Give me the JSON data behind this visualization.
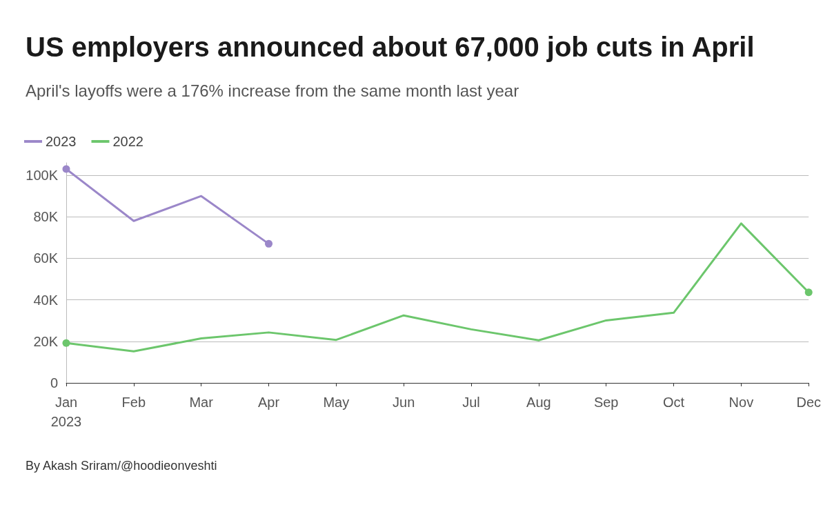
{
  "chart_data": {
    "type": "line",
    "title": "US employers announced about 67,000 job cuts in April",
    "subtitle": "April's layoffs were a 176% increase from the same month last year",
    "categories": [
      "Jan\n2023",
      "Feb",
      "Mar",
      "Apr",
      "May",
      "Jun",
      "Jul",
      "Aug",
      "Sep",
      "Oct",
      "Nov",
      "Dec"
    ],
    "series": [
      {
        "name": "2023",
        "color": "#9b87c9",
        "values": [
          103000,
          78000,
          90000,
          67000,
          null,
          null,
          null,
          null,
          null,
          null,
          null,
          null
        ]
      },
      {
        "name": "2022",
        "color": "#6cc66c",
        "values": [
          19200,
          15200,
          21400,
          24300,
          20700,
          32500,
          25800,
          20500,
          30100,
          33800,
          76800,
          43600
        ]
      }
    ],
    "ylim": [
      0,
      106000
    ],
    "yticks": [
      {
        "value": 0,
        "label": "0"
      },
      {
        "value": 20000,
        "label": "20K"
      },
      {
        "value": 40000,
        "label": "40K"
      },
      {
        "value": 60000,
        "label": "60K"
      },
      {
        "value": 80000,
        "label": "80K"
      },
      {
        "value": 100000,
        "label": "100K"
      }
    ],
    "grid": "y",
    "legend": "top left",
    "line_style": "solid",
    "annotations": [
      "By Akash Sriram/@hoodieonveshti"
    ]
  }
}
